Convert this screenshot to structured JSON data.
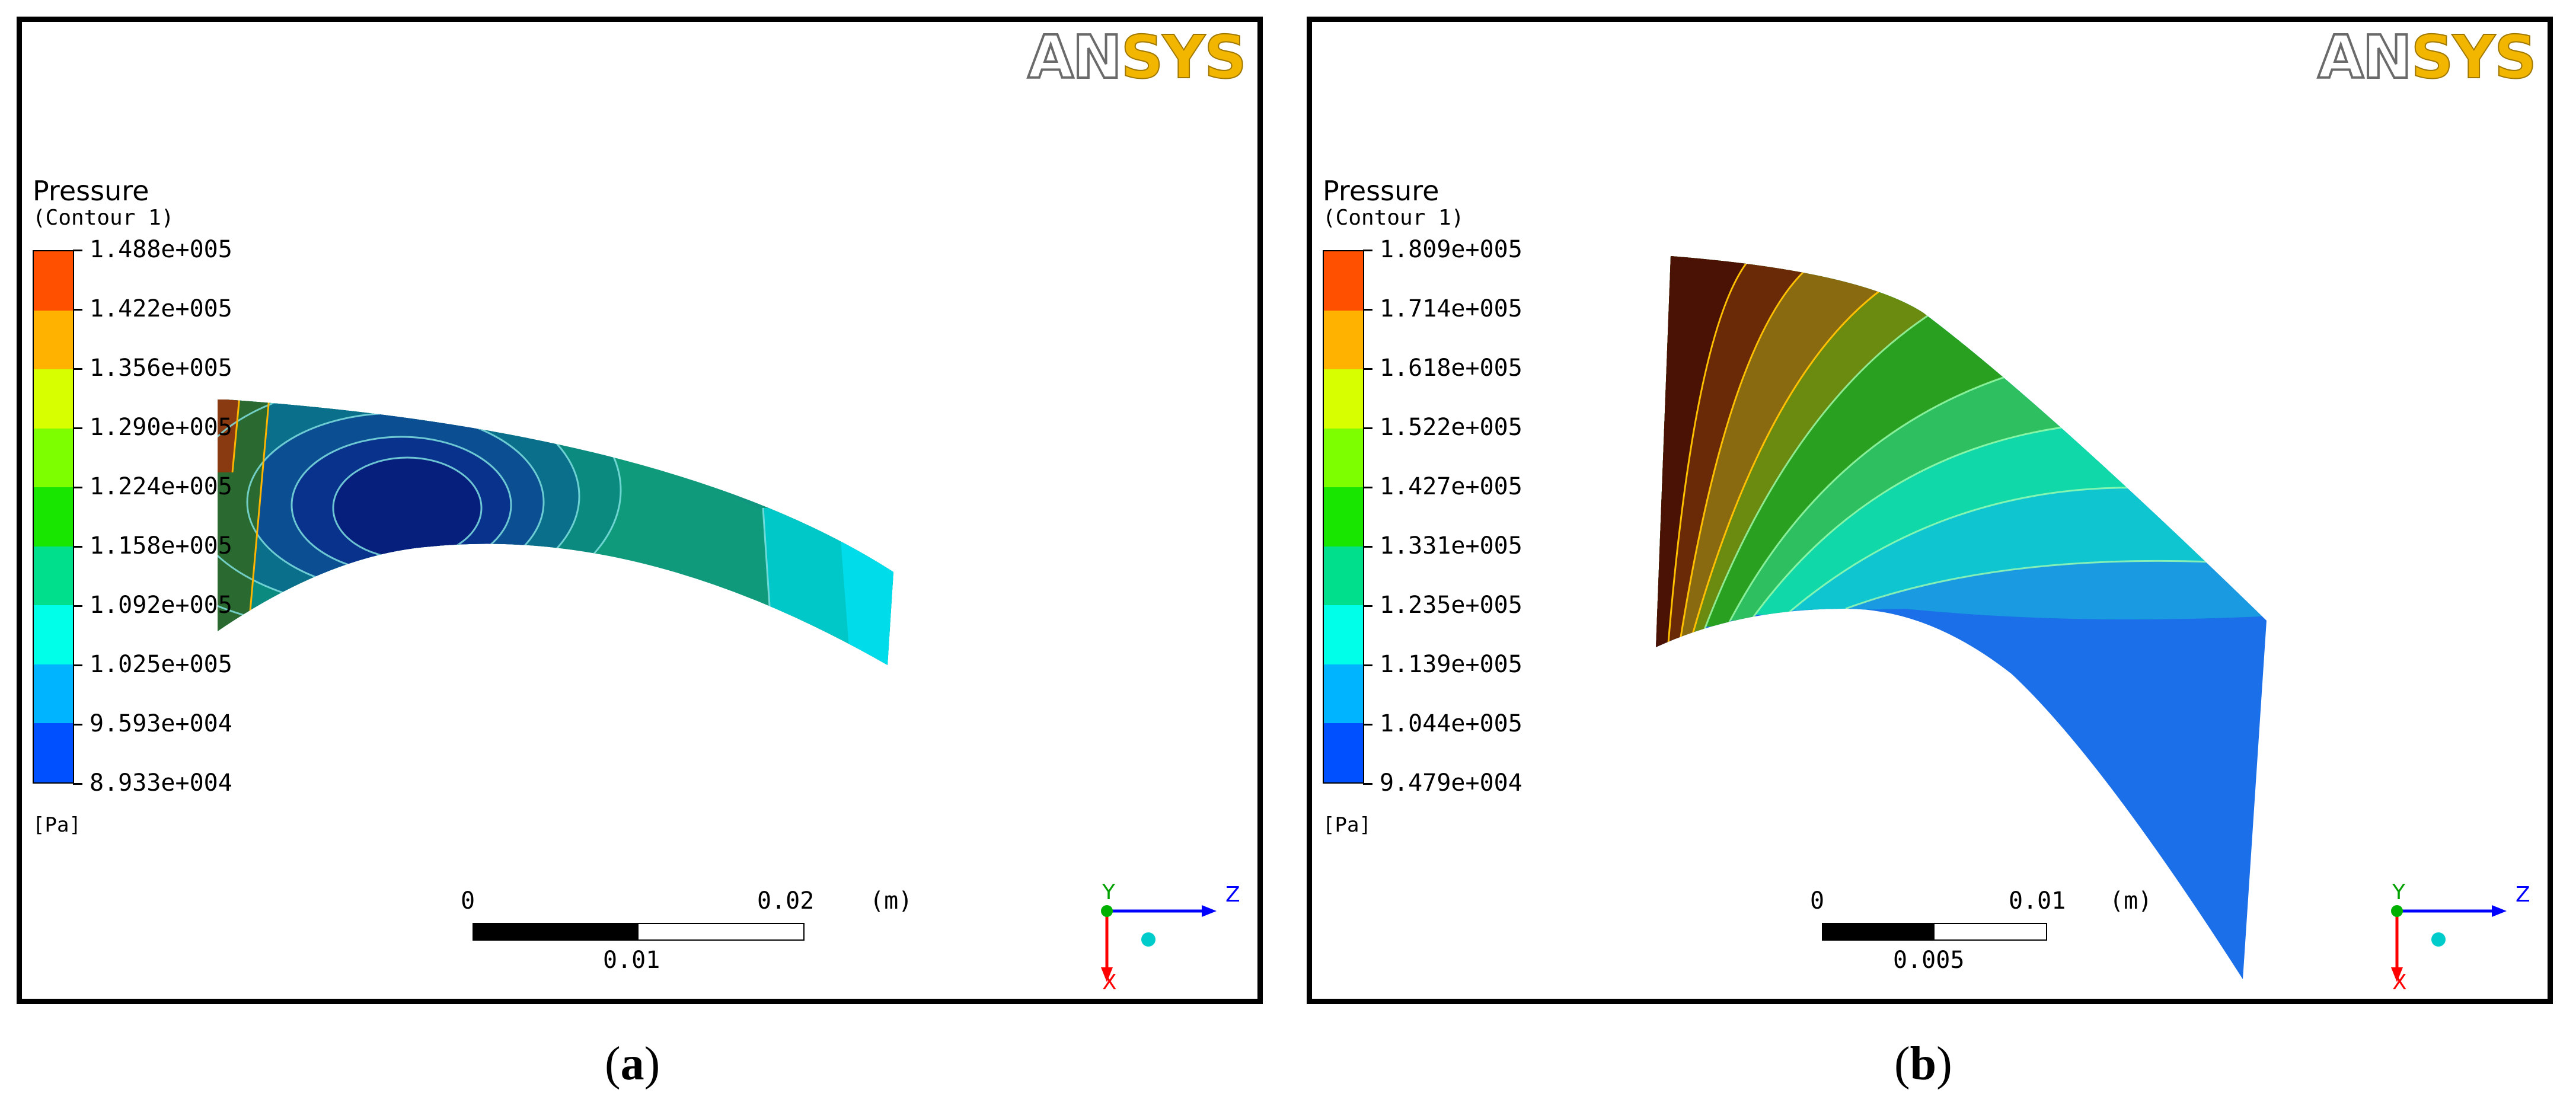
{
  "panels": [
    {
      "logo": {
        "part1": "AN",
        "part2": "SYS"
      },
      "legend": {
        "title": "Pressure",
        "subtitle": "(Contour 1)",
        "unit": "[Pa]",
        "ticks": [
          "1.488e+005",
          "1.422e+005",
          "1.356e+005",
          "1.290e+005",
          "1.224e+005",
          "1.158e+005",
          "1.092e+005",
          "1.025e+005",
          "9.593e+004",
          "8.933e+004"
        ],
        "colors": [
          "#ff5000",
          "#ffb300",
          "#d8ff00",
          "#7dff00",
          "#19e600",
          "#00e08c",
          "#00ffe8",
          "#00b4ff",
          "#0050ff"
        ]
      },
      "scale": {
        "start": "0",
        "end": "0.02",
        "unit": "(m)",
        "mid": "0.01"
      },
      "triad": {
        "y": "Y",
        "z": "Z",
        "x": "X"
      },
      "caption": "a"
    },
    {
      "logo": {
        "part1": "AN",
        "part2": "SYS"
      },
      "legend": {
        "title": "Pressure",
        "subtitle": "(Contour 1)",
        "unit": "[Pa]",
        "ticks": [
          "1.809e+005",
          "1.714e+005",
          "1.618e+005",
          "1.522e+005",
          "1.427e+005",
          "1.331e+005",
          "1.235e+005",
          "1.139e+005",
          "1.044e+005",
          "9.479e+004"
        ],
        "colors": [
          "#ff5000",
          "#ffb300",
          "#d8ff00",
          "#7dff00",
          "#19e600",
          "#00e08c",
          "#00ffe8",
          "#00b4ff",
          "#0050ff"
        ]
      },
      "scale": {
        "start": "0",
        "end": "0.01",
        "unit": "(m)",
        "mid": "0.005"
      },
      "triad": {
        "y": "Y",
        "z": "Z",
        "x": "X"
      },
      "caption": "b"
    }
  ]
}
